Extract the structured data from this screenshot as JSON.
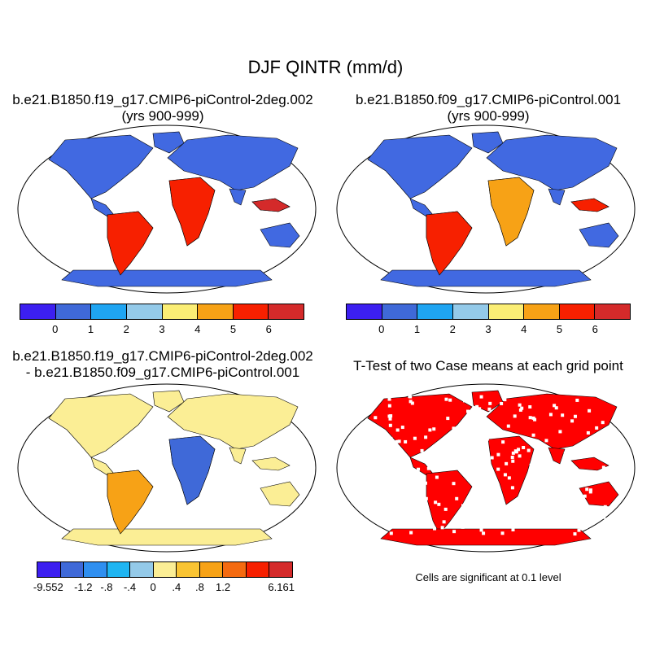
{
  "title": "DJF QINTR (mm/d)",
  "panels": [
    {
      "title_line1": "b.e21.B1850.f19_g17.CMIP6-piControl-2deg.002",
      "title_line2": "(yrs 900-999)",
      "land_fill": "#4169e1",
      "colorbar": {
        "colors": [
          "#3c1ff0",
          "#3f69d8",
          "#1fa5f2",
          "#94cae9",
          "#fbee75",
          "#f7a216",
          "#f72000",
          "#d42a2a"
        ],
        "labels": [
          "0",
          "1",
          "2",
          "3",
          "4",
          "5",
          "6"
        ]
      }
    },
    {
      "title_line1": "b.e21.B1850.f09_g17.CMIP6-piControl.001",
      "title_line2": "(yrs 900-999)",
      "land_fill": "#4169e1",
      "colorbar": {
        "colors": [
          "#3c1ff0",
          "#3f69d8",
          "#1fa5f2",
          "#94cae9",
          "#fbee75",
          "#f7a216",
          "#f72000",
          "#d42a2a"
        ],
        "labels": [
          "0",
          "1",
          "2",
          "3",
          "4",
          "5",
          "6"
        ]
      }
    },
    {
      "title_line1": "b.e21.B1850.f19_g17.CMIP6-piControl-2deg.002",
      "title_line2": "- b.e21.B1850.f09_g17.CMIP6-piControl.001",
      "land_fill": "#fbee95",
      "colorbar": {
        "colors": [
          "#3c1ff0",
          "#3f69d8",
          "#2f8ff0",
          "#1fb5f2",
          "#94cae9",
          "#fbee95",
          "#f9c433",
          "#f7a216",
          "#f46a10",
          "#f72000",
          "#d42a2a"
        ],
        "labels": [
          "-9.552",
          "-1.2",
          "-.8",
          "-.4",
          "0",
          ".4",
          ".8",
          "1.2",
          "6.161"
        ]
      }
    },
    {
      "title_line1": "T-Test of two Case means at each grid point",
      "title_line2": "",
      "land_fill": "#ff0000",
      "note": "Cells are significant at 0.1 level"
    }
  ]
}
